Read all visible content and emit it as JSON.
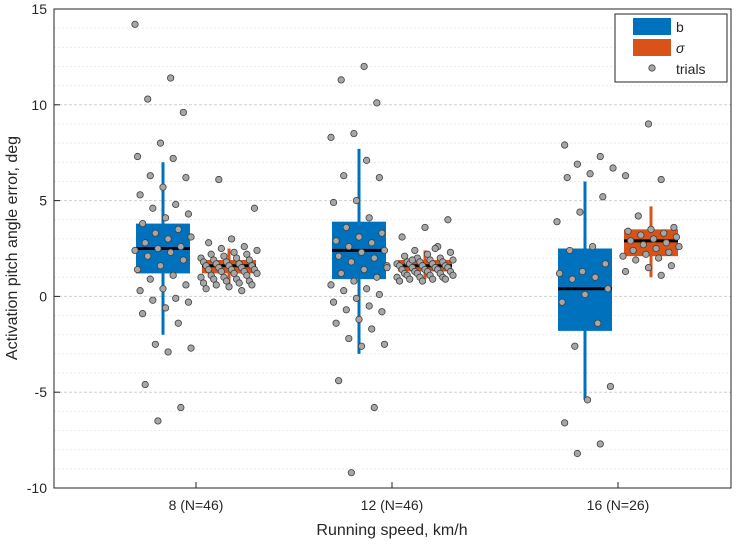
{
  "chart_data": {
    "type": "box",
    "xlabel": "Running speed, km/h",
    "ylabel": "Activation pitch angle error, deg",
    "ylim": [
      -10,
      15
    ],
    "yticks": [
      -10,
      -5,
      0,
      5,
      10,
      15
    ],
    "minor_grid_step": 1,
    "legend_position": "top-right",
    "categories": [
      "8 (N=46)",
      "12 (N=46)",
      "16 (N=26)"
    ],
    "series": [
      {
        "name": "b",
        "color": "#0072BD",
        "boxes": [
          {
            "q1": 1.2,
            "median": 2.5,
            "q3": 3.8,
            "whisker_low": -2.0,
            "whisker_high": 7.0
          },
          {
            "q1": 0.9,
            "median": 2.4,
            "q3": 3.9,
            "whisker_low": -3.0,
            "whisker_high": 7.7
          },
          {
            "q1": -1.8,
            "median": 0.4,
            "q3": 2.5,
            "whisker_low": -5.4,
            "whisker_high": 6.0
          }
        ],
        "trials": [
          [
            14.2,
            11.4,
            10.3,
            9.6,
            8.0,
            7.3,
            7.2,
            6.3,
            6.2,
            5.7,
            5.3,
            4.8,
            4.6,
            4.3,
            4.1,
            3.8,
            3.5,
            3.3,
            3.1,
            3.0,
            2.8,
            2.6,
            2.5,
            2.4,
            2.3,
            2.1,
            1.9,
            1.6,
            1.4,
            1.1,
            0.9,
            0.6,
            0.4,
            0.3,
            -0.1,
            -0.2,
            -0.3,
            -0.6,
            -0.9,
            -1.4,
            -2.5,
            -2.7,
            -2.9,
            -4.6,
            -5.8,
            -6.5
          ],
          [
            12.0,
            11.3,
            10.1,
            8.5,
            8.3,
            7.1,
            6.3,
            6.2,
            5.0,
            4.9,
            4.1,
            3.6,
            3.3,
            3.1,
            2.9,
            2.8,
            2.6,
            2.4,
            2.3,
            2.1,
            2.0,
            1.8,
            1.6,
            1.4,
            1.2,
            1.0,
            0.8,
            0.6,
            0.4,
            0.3,
            0.1,
            -0.1,
            -0.3,
            -0.5,
            -0.7,
            -0.8,
            -1.2,
            -1.4,
            -1.7,
            -2.2,
            -2.5,
            -2.6,
            -4.4,
            -5.8,
            -9.2,
            1.5
          ],
          [
            7.9,
            7.3,
            6.9,
            6.7,
            6.4,
            6.2,
            5.2,
            4.4,
            3.9,
            2.6,
            2.4,
            1.7,
            1.3,
            1.2,
            1.0,
            0.9,
            0.4,
            0.1,
            -0.3,
            -1.4,
            -2.6,
            -4.7,
            -5.4,
            -6.6,
            -7.7,
            -8.2
          ]
        ]
      },
      {
        "name": "σ",
        "color": "#D95319",
        "boxes": [
          {
            "q1": 1.2,
            "median": 1.6,
            "q3": 1.9,
            "whisker_low": 0.6,
            "whisker_high": 2.5
          },
          {
            "q1": 1.3,
            "median": 1.6,
            "q3": 1.9,
            "whisker_low": 0.9,
            "whisker_high": 2.4
          },
          {
            "q1": 2.1,
            "median": 2.9,
            "q3": 3.5,
            "whisker_low": 1.0,
            "whisker_high": 4.7
          }
        ],
        "trials": [
          [
            6.1,
            4.6,
            3.0,
            2.8,
            2.6,
            2.5,
            2.4,
            2.3,
            2.2,
            2.2,
            2.1,
            2.0,
            2.0,
            1.9,
            1.9,
            1.8,
            1.8,
            1.7,
            1.7,
            1.6,
            1.6,
            1.6,
            1.5,
            1.5,
            1.4,
            1.4,
            1.4,
            1.3,
            1.3,
            1.2,
            1.2,
            1.1,
            1.1,
            1.0,
            1.0,
            0.9,
            0.9,
            0.8,
            0.8,
            0.7,
            0.7,
            0.6,
            0.6,
            0.5,
            0.4,
            0.3
          ],
          [
            4.0,
            3.6,
            3.1,
            2.6,
            2.4,
            2.3,
            2.2,
            2.1,
            2.0,
            2.0,
            1.9,
            1.9,
            1.8,
            1.8,
            1.8,
            1.7,
            1.7,
            1.7,
            1.6,
            1.6,
            1.6,
            1.5,
            1.5,
            1.5,
            1.4,
            1.4,
            1.4,
            1.3,
            1.3,
            1.3,
            1.2,
            1.2,
            1.2,
            1.1,
            1.1,
            1.1,
            1.0,
            1.0,
            1.0,
            0.9,
            0.9,
            0.9,
            0.8,
            0.8,
            2.5,
            1.9
          ],
          [
            9.0,
            6.3,
            6.1,
            4.2,
            3.6,
            3.5,
            3.4,
            3.3,
            3.2,
            3.1,
            3.0,
            2.9,
            2.8,
            2.7,
            2.6,
            2.5,
            2.4,
            2.3,
            2.2,
            2.1,
            2.0,
            1.9,
            1.6,
            1.5,
            1.3,
            1.1
          ]
        ]
      }
    ],
    "legend": [
      {
        "label": "b",
        "kind": "patch",
        "color": "#0072BD"
      },
      {
        "label": "σ",
        "kind": "patch",
        "color": "#D95319"
      },
      {
        "label": "trials",
        "kind": "marker",
        "color": "#A6A6A6"
      }
    ]
  }
}
